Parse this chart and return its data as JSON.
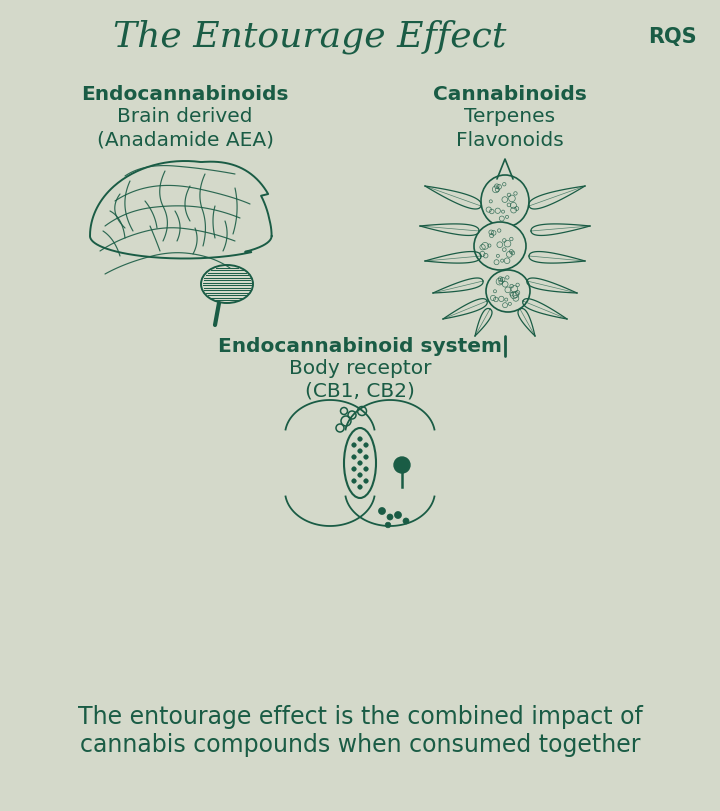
{
  "bg_color": "#d4d9ca",
  "dark_green": "#1a5c45",
  "title": "The Entourage Effect",
  "rqs_label": "RQS",
  "left_label_lines": [
    "Endocannabinoids",
    "Brain derived",
    "(Anadamide AEA)"
  ],
  "right_label_lines": [
    "Cannabinoids",
    "Terpenes",
    "Flavonoids"
  ],
  "center_label_lines": [
    "Endocannabinoid system",
    "Body receptor",
    "(CB1, CB2)"
  ],
  "footer_lines": [
    "The entourage effect is the combined impact of",
    "cannabis compounds when consumed together"
  ],
  "title_fontsize": 26,
  "label_fontsize": 14.5,
  "footer_fontsize": 17
}
